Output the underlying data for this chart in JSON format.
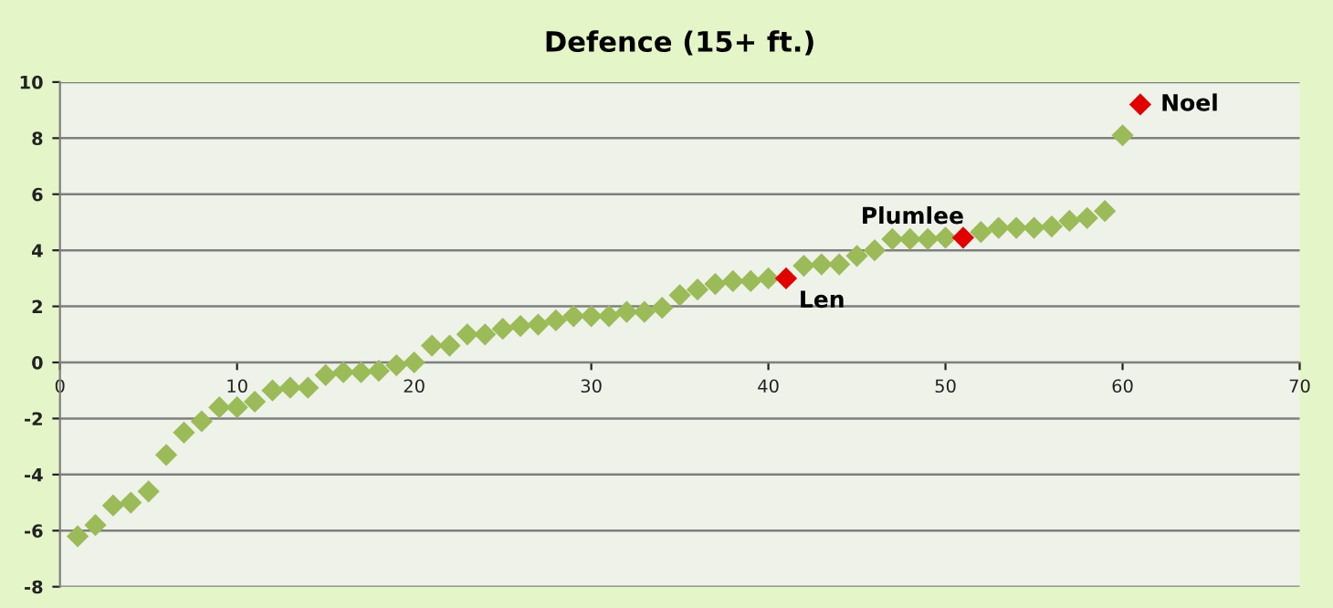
{
  "chart_data": {
    "type": "scatter",
    "title": "Defence (15+ ft.)",
    "series": [
      {
        "color": "#9bbb59",
        "x": [
          1,
          2,
          3,
          4,
          5,
          6,
          7,
          8,
          9,
          10,
          11,
          12,
          13,
          14,
          15,
          16,
          17,
          18,
          19,
          20,
          21,
          22,
          23,
          24,
          25,
          26,
          27,
          28,
          29,
          30,
          31,
          32,
          33,
          34,
          35,
          36,
          37,
          38,
          39,
          40,
          42,
          43,
          44,
          45,
          46,
          47,
          48,
          49,
          50,
          52,
          53,
          54,
          55,
          56,
          57,
          58,
          59,
          60
        ],
        "values": [
          -6.2,
          -5.8,
          -5.1,
          -5.0,
          -4.6,
          -3.3,
          -2.5,
          -2.1,
          -1.6,
          -1.6,
          -1.4,
          -1.0,
          -0.9,
          -0.9,
          -0.45,
          -0.35,
          -0.35,
          -0.3,
          -0.1,
          0.0,
          0.6,
          0.6,
          1.0,
          1.0,
          1.2,
          1.3,
          1.35,
          1.5,
          1.65,
          1.65,
          1.65,
          1.8,
          1.8,
          1.95,
          2.4,
          2.6,
          2.8,
          2.9,
          2.9,
          3.0,
          3.45,
          3.5,
          3.5,
          3.8,
          4.0,
          4.4,
          4.4,
          4.4,
          4.45,
          4.65,
          4.8,
          4.8,
          4.8,
          4.85,
          5.05,
          5.15,
          5.4,
          8.1
        ]
      },
      {
        "color": "#e00000",
        "x": [
          41,
          51,
          61
        ],
        "values": [
          3.0,
          4.45,
          9.2
        ]
      }
    ],
    "annotations": [
      {
        "text": "Len",
        "x": 41,
        "y": 3.0
      },
      {
        "text": "Plumlee",
        "x": 51,
        "y": 4.45
      },
      {
        "text": "Noel",
        "x": 61,
        "y": 9.2
      }
    ],
    "xlim": [
      0,
      70
    ],
    "xticks": [
      0,
      10,
      20,
      30,
      40,
      50,
      60,
      70
    ],
    "ylim": [
      -8,
      10
    ],
    "yticks": [
      -8,
      -6,
      -4,
      -2,
      0,
      2,
      4,
      6,
      8,
      10
    ],
    "grid": "y",
    "marker": "diamond",
    "legend": false
  }
}
